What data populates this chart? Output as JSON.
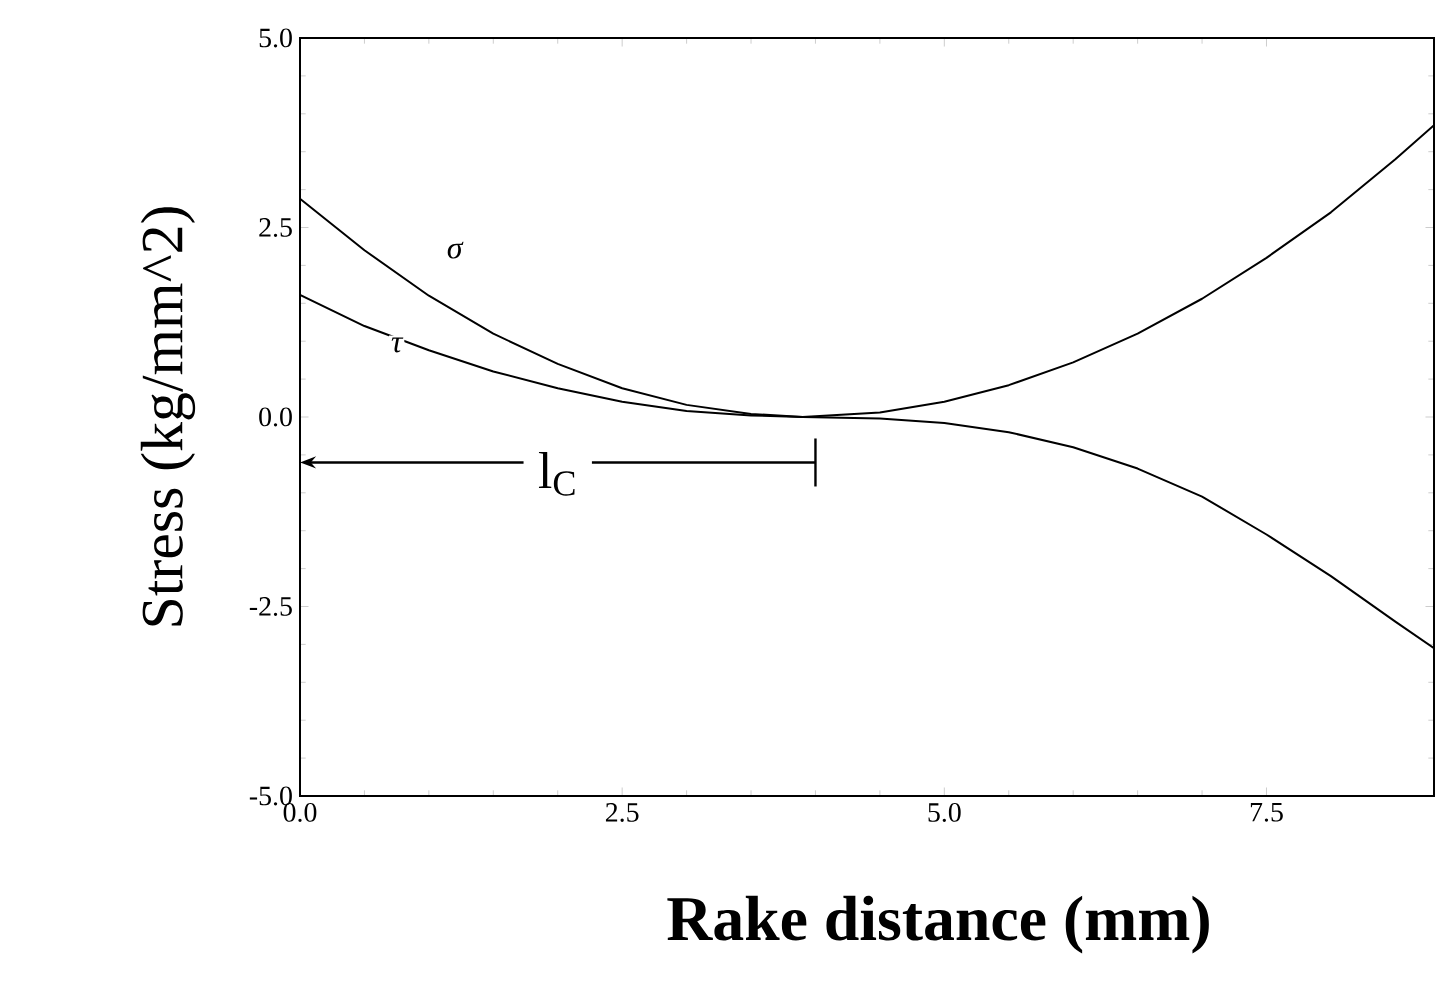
{
  "chart_data": {
    "type": "line",
    "xlabel": "Rake distance (mm)",
    "ylabel": "Stress (kg/mm^2)",
    "xlim": [
      0,
      8.8
    ],
    "ylim": [
      -5,
      5
    ],
    "xticks": [
      {
        "value": 0,
        "label": "0.0"
      },
      {
        "value": 2.5,
        "label": "2.5"
      },
      {
        "value": 5,
        "label": "5.0"
      },
      {
        "value": 7.5,
        "label": "7.5"
      }
    ],
    "yticks": [
      {
        "value": -5,
        "label": "-5.0"
      },
      {
        "value": -2.5,
        "label": "-2.5"
      },
      {
        "value": 0,
        "label": "0.0"
      },
      {
        "value": 2.5,
        "label": "2.5"
      },
      {
        "value": 5,
        "label": "5.0"
      }
    ],
    "x": [
      0,
      0.5,
      1,
      1.5,
      2,
      2.5,
      3,
      3.5,
      3.9,
      4.5,
      5,
      5.5,
      6,
      6.5,
      7,
      7.5,
      8,
      8.5,
      8.8
    ],
    "series": [
      {
        "color": "#000000",
        "values": [
          2.88,
          2.2,
          1.6,
          1.1,
          0.7,
          0.38,
          0.16,
          0.04,
          0,
          0.06,
          0.2,
          0.42,
          0.72,
          1.1,
          1.56,
          2.1,
          2.7,
          3.4,
          3.85
        ]
      },
      {
        "color": "#000000",
        "values": [
          1.61,
          1.2,
          0.88,
          0.6,
          0.38,
          0.2,
          0.08,
          0.02,
          0,
          -0.02,
          -0.08,
          -0.2,
          -0.4,
          -0.68,
          -1.05,
          -1.55,
          -2.1,
          -2.7,
          -3.05
        ]
      }
    ],
    "annotations": [
      "σ",
      "τ",
      "l$_{C}$"
    ],
    "marker": "none",
    "line_style": "solid",
    "grid": false
  }
}
